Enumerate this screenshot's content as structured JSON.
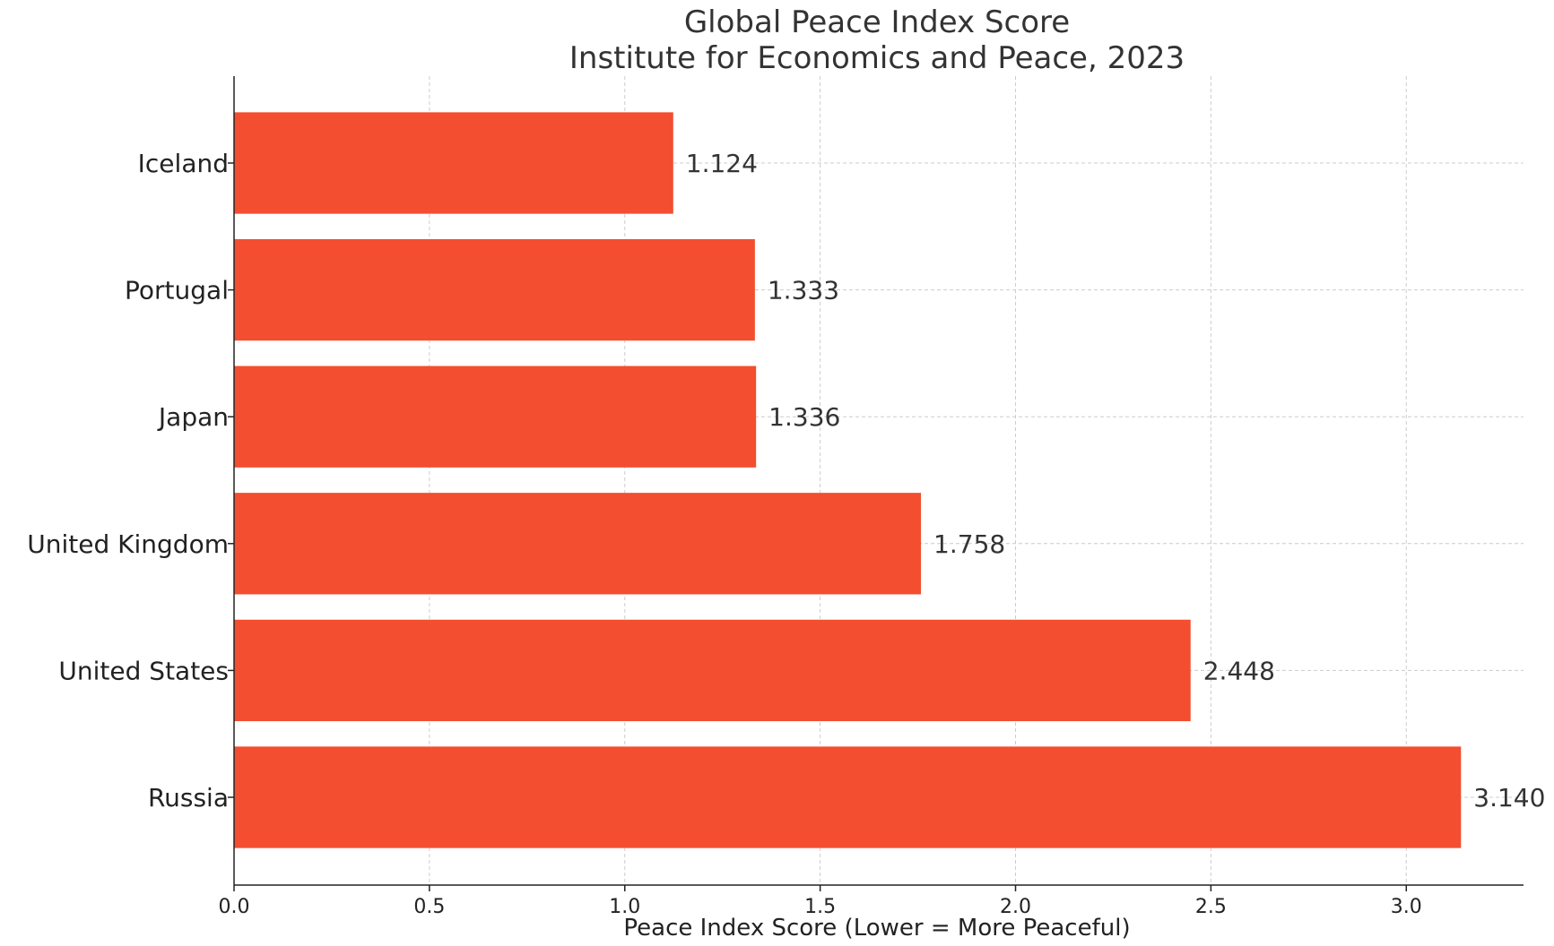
{
  "chart_data": {
    "type": "bar",
    "orientation": "horizontal",
    "title": "Global Peace Index Score",
    "subtitle": "Institute for Economics and Peace, 2023",
    "xlabel": "Peace Index Score (Lower = More Peaceful)",
    "ylabel": "",
    "categories": [
      "Iceland",
      "Portugal",
      "Japan",
      "United Kingdom",
      "United States",
      "Russia"
    ],
    "values": [
      1.124,
      1.333,
      1.336,
      1.758,
      2.448,
      3.14
    ],
    "value_labels": [
      "1.124",
      "1.333",
      "1.336",
      "1.758",
      "2.448",
      "3.140"
    ],
    "xlim": [
      0,
      3.3
    ],
    "xticks": [
      0.0,
      0.5,
      1.0,
      1.5,
      2.0,
      2.5,
      3.0
    ],
    "xtick_labels": [
      "0.0",
      "0.5",
      "1.0",
      "1.5",
      "2.0",
      "2.5",
      "3.0"
    ],
    "grid": true,
    "legend": false,
    "bar_color": "#f34e2f"
  }
}
